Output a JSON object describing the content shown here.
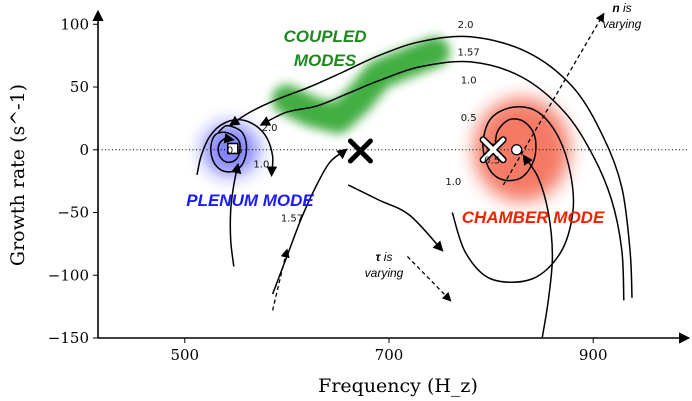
{
  "chart_data": {
    "type": "line",
    "title": "",
    "xlabel": "Frequency (H_z)",
    "ylabel": "Growth rate (s^-1)",
    "xlim": [
      415,
      985
    ],
    "ylim": [
      -150,
      105
    ],
    "xticks": [
      {
        "value": 500,
        "label": "500"
      },
      {
        "value": 700,
        "label": "700"
      },
      {
        "value": 900,
        "label": "900"
      }
    ],
    "yticks": [
      {
        "value": 100,
        "label": "100"
      },
      {
        "value": 50,
        "label": "50"
      },
      {
        "value": 0,
        "label": "0"
      },
      {
        "value": -50,
        "label": "−50"
      },
      {
        "value": -100,
        "label": "−100"
      },
      {
        "value": -150,
        "label": "−150"
      }
    ],
    "grid": false,
    "reference_line": {
      "y": 0,
      "style": "dotted"
    },
    "regions": [
      {
        "name": "PLENUM MODE",
        "color": "#1a1aff",
        "center": [
          545,
          0
        ]
      },
      {
        "name": "COUPLED MODES",
        "color": "#22a022",
        "center": [
          680,
          50
        ]
      },
      {
        "name": "CHAMBER MODE",
        "color": "#ee2200",
        "center": [
          830,
          0
        ]
      }
    ],
    "markers": [
      {
        "kind": "square",
        "x": 547,
        "y": 1,
        "color": "#ffffff"
      },
      {
        "kind": "cross",
        "x": 672,
        "y": -1,
        "color": "#000000"
      },
      {
        "kind": "cross",
        "x": 802,
        "y": 0,
        "color": "#ffffff"
      },
      {
        "kind": "circle",
        "x": 825,
        "y": 0,
        "color": "#ffffff"
      }
    ],
    "contour_labels": [
      {
        "text": "2.0",
        "x": 775,
        "y": 97
      },
      {
        "text": "1.57",
        "x": 778,
        "y": 75
      },
      {
        "text": "1.0",
        "x": 778,
        "y": 53
      },
      {
        "text": "0.5",
        "x": 778,
        "y": 23
      },
      {
        "text": "2.0",
        "x": 583,
        "y": 15
      },
      {
        "text": "1.57",
        "x": 605,
        "y": -57
      },
      {
        "text": "1.0",
        "x": 763,
        "y": -28
      },
      {
        "text": "0.5",
        "x": 801,
        "y": -11
      },
      {
        "text": "0.5",
        "x": 549,
        "y": -3
      },
      {
        "text": "1.0",
        "x": 575,
        "y": -14
      }
    ],
    "annotations": [
      {
        "text_bold": "n",
        "text": "is",
        "text2": "varying",
        "x": 900,
        "y": 107
      },
      {
        "text_bold": "τ",
        "text": "is",
        "text2": "varying",
        "x": 688,
        "y": -77
      }
    ],
    "trajectories": [
      {
        "name": "",
        "points": [
          [
            533,
            14
          ],
          [
            540,
            19
          ],
          [
            548,
            18
          ],
          [
            556,
            14
          ],
          [
            560,
            6
          ],
          [
            560,
            -3
          ],
          [
            556,
            -12
          ],
          [
            548,
            -17
          ],
          [
            538,
            -17
          ],
          [
            530,
            -12
          ],
          [
            526,
            -4
          ],
          [
            526,
            5
          ],
          [
            530,
            12
          ],
          [
            538,
            14
          ],
          [
            546,
            12
          ],
          [
            553,
            7
          ],
          [
            554,
            0
          ],
          [
            551,
            -7
          ],
          [
            544,
            -10
          ],
          [
            537,
            -8
          ],
          [
            533,
            -2
          ],
          [
            534,
            5
          ],
          [
            540,
            9
          ],
          [
            547,
            8
          ]
        ]
      },
      {
        "name": "",
        "points": [
          [
            512,
            -20
          ],
          [
            516,
            -5
          ],
          [
            524,
            10
          ],
          [
            536,
            20
          ],
          [
            552,
            24
          ],
          [
            568,
            20
          ],
          [
            580,
            10
          ],
          [
            586,
            -5
          ],
          [
            585,
            -20
          ]
        ]
      },
      {
        "name": "",
        "points": [
          [
            930,
            -120
          ],
          [
            928,
            -80
          ],
          [
            918,
            -40
          ],
          [
            900,
            -5
          ],
          [
            872,
            30
          ],
          [
            830,
            58
          ],
          [
            780,
            70
          ],
          [
            730,
            66
          ],
          [
            690,
            55
          ],
          [
            660,
            45
          ],
          [
            630,
            35
          ],
          [
            600,
            30
          ],
          [
            575,
            20
          ]
        ]
      },
      {
        "name": "",
        "points": [
          [
            938,
            -118
          ],
          [
            936,
            -80
          ],
          [
            928,
            -30
          ],
          [
            910,
            10
          ],
          [
            880,
            50
          ],
          [
            835,
            78
          ],
          [
            780,
            90
          ],
          [
            730,
            86
          ],
          [
            690,
            75
          ],
          [
            655,
            62
          ],
          [
            622,
            50
          ],
          [
            590,
            40
          ],
          [
            564,
            30
          ],
          [
            545,
            20
          ]
        ]
      },
      {
        "name": "",
        "points": [
          [
            548,
            -93
          ],
          [
            545,
            -72
          ],
          [
            545,
            -48
          ],
          [
            548,
            -28
          ],
          [
            552,
            -12
          ]
        ]
      },
      {
        "name": "",
        "points": [
          [
            586,
            -115
          ],
          [
            600,
            -85
          ],
          [
            614,
            -55
          ],
          [
            628,
            -30
          ],
          [
            642,
            -10
          ],
          [
            658,
            0
          ]
        ]
      },
      {
        "name": "",
        "points": [
          [
            850,
            -150
          ],
          [
            856,
            -120
          ],
          [
            860,
            -85
          ],
          [
            856,
            -50
          ],
          [
            846,
            -22
          ],
          [
            832,
            -5
          ]
        ]
      },
      {
        "name": "",
        "points": [
          [
            762,
            -50
          ],
          [
            775,
            -82
          ],
          [
            800,
            -103
          ],
          [
            840,
            -103
          ],
          [
            868,
            -82
          ],
          [
            880,
            -50
          ],
          [
            878,
            -20
          ],
          [
            866,
            10
          ],
          [
            846,
            30
          ],
          [
            822,
            34
          ],
          [
            800,
            25
          ],
          [
            792,
            5
          ],
          [
            798,
            -15
          ],
          [
            812,
            -24
          ],
          [
            830,
            -22
          ],
          [
            842,
            -8
          ],
          [
            843,
            10
          ],
          [
            833,
            22
          ],
          [
            818,
            24
          ],
          [
            806,
            14
          ],
          [
            804,
            -2
          ]
        ]
      },
      {
        "name": "",
        "points": [
          [
            660,
            -28
          ],
          [
            690,
            -40
          ],
          [
            720,
            -52
          ],
          [
            752,
            -80
          ]
        ]
      }
    ],
    "dashed_arrows": [
      {
        "from": [
          812,
          -28
        ],
        "to": [
          910,
          108
        ]
      },
      {
        "from": [
          718,
          -85
        ],
        "to": [
          760,
          -120
        ]
      },
      {
        "from": [
          586,
          -128
        ],
        "to": [
          600,
          -80
        ]
      }
    ]
  }
}
